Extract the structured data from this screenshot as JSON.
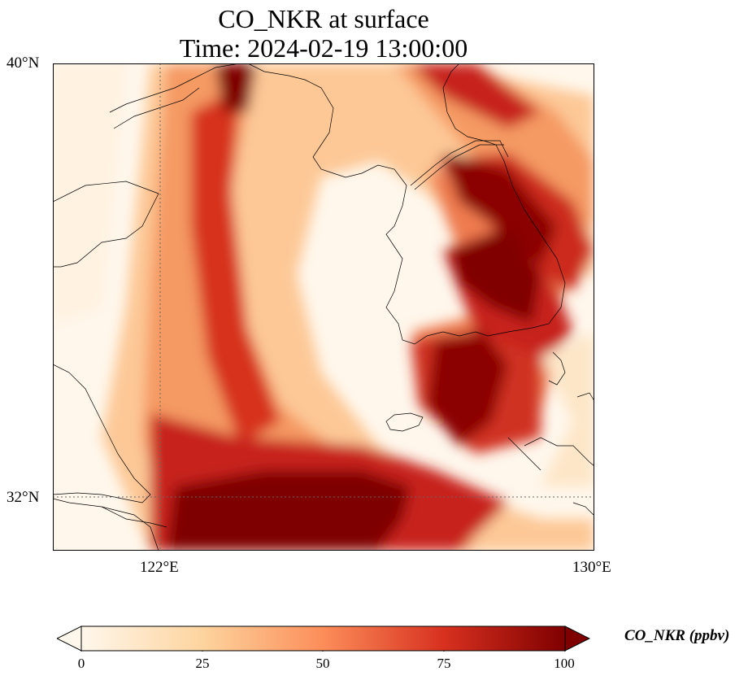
{
  "title_line1": "CO_NKR at surface",
  "title_line2": "Time: 2024-02-19 13:00:00",
  "lat_labels": [
    "40°N",
    "32°N"
  ],
  "lon_labels": [
    "122°E",
    "130°E"
  ],
  "colorbar": {
    "label": "CO_NKR (ppbv)",
    "ticks": [
      "0",
      "25",
      "50",
      "75",
      "100"
    ],
    "colors": [
      "#fff7ec",
      "#fdd49e",
      "#fc8d59",
      "#d7301f",
      "#7f0000"
    ]
  },
  "map_extent": {
    "lon_min": 120,
    "lon_max": 130,
    "lat_min": 31,
    "lat_max": 40
  },
  "gridlines": {
    "lons": [
      122
    ],
    "lats": [
      32
    ],
    "style": "dotted"
  }
}
